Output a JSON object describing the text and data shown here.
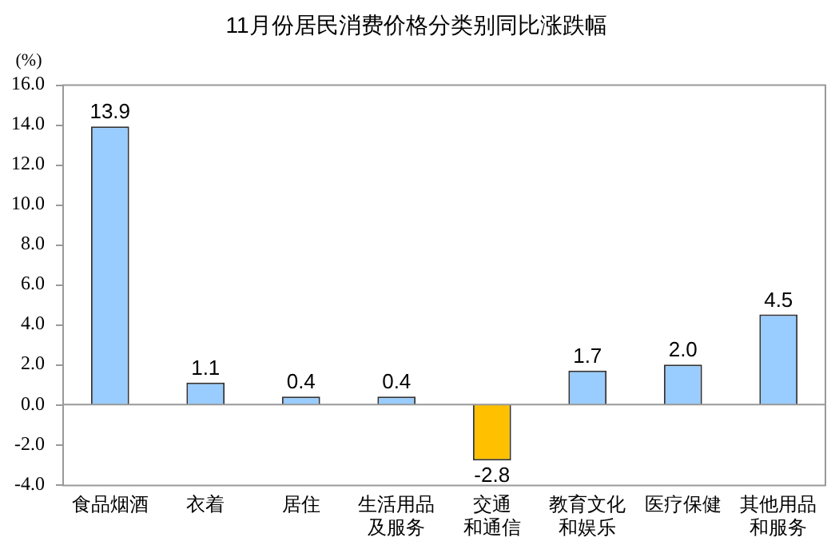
{
  "chart_data": {
    "type": "bar",
    "title": "11月份居民消费价格分类别同比涨跌幅",
    "ylabel": "(%)",
    "categories": [
      "食品烟酒",
      "衣着",
      "居住",
      "生活用品及服务",
      "交通和通信",
      "教育文化和娱乐",
      "医疗保健",
      "其他用品和服务"
    ],
    "values": [
      13.9,
      1.1,
      0.4,
      0.4,
      -2.8,
      1.7,
      2.0,
      4.5
    ],
    "colors": [
      "#99ccff",
      "#99ccff",
      "#99ccff",
      "#99ccff",
      "#ffc000",
      "#99ccff",
      "#99ccff",
      "#99ccff"
    ],
    "ylim": [
      -4,
      16
    ],
    "yticks": [
      {
        "value": -4,
        "label": "-4.0"
      },
      {
        "value": -2,
        "label": "-2.0"
      },
      {
        "value": 0,
        "label": "0.0"
      },
      {
        "value": 2,
        "label": "2.0"
      },
      {
        "value": 4,
        "label": "4.0"
      },
      {
        "value": 6,
        "label": "6.0"
      },
      {
        "value": 8,
        "label": "8.0"
      },
      {
        "value": 10,
        "label": "10.0"
      },
      {
        "value": 12,
        "label": "12.0"
      },
      {
        "value": 14,
        "label": "14.0"
      },
      {
        "value": 16,
        "label": "16.0"
      }
    ],
    "value_labels": [
      "13.9",
      "1.1",
      "0.4",
      "0.4",
      "-2.8",
      "1.7",
      "2.0",
      "4.5"
    ],
    "legend": false
  }
}
